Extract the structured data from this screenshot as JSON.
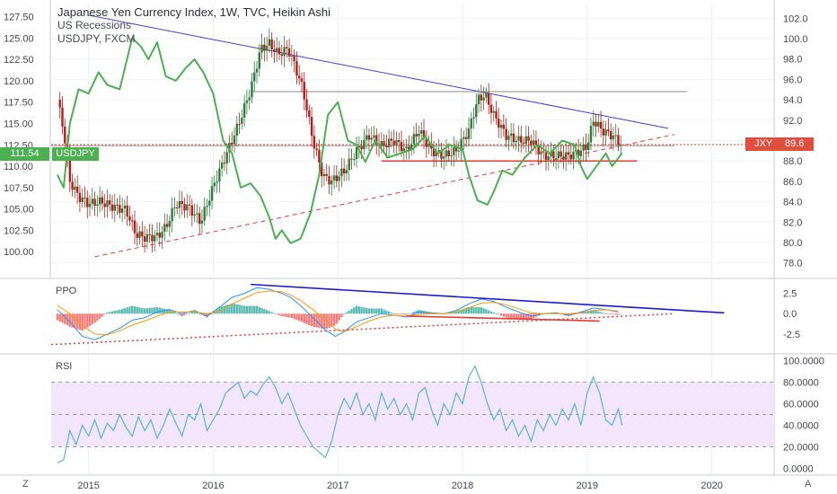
{
  "header": {
    "title": "Japanese Yen Currency Index, 1W, TVC, Heikin Ashi",
    "line2": "US Recessions",
    "line3": "USDJPY, FXCM"
  },
  "badges": {
    "usdjpy_value": "111.54",
    "usdjpy_name": "USDJPY",
    "jxy_name": "JXY",
    "jxy_value": "89.6",
    "usdjpy_color": "#4caf50",
    "jxy_color": "#e04e3e"
  },
  "buttons": {
    "zoom": "Z",
    "auto": "A"
  },
  "colors": {
    "up_candle": "#2f7d3a",
    "down_candle": "#b71c1c",
    "usdjpy_line": "#4caf50",
    "trend_blue": "#3f3fd0",
    "trend_red": "#e53935",
    "ppo_line": "#2196f3",
    "ppo_signal": "#ff9800",
    "rsi_line": "#56b4d3",
    "rsi_band": "#f3e5fb"
  },
  "chart_data": [
    {
      "type": "line",
      "name": "price-pane",
      "x_ticks": [
        "2015",
        "2016",
        "2017",
        "2018",
        "2019",
        "2020"
      ],
      "left_axis": {
        "ticks": [
          "127.50",
          "125.00",
          "122.50",
          "120.00",
          "117.50",
          "115.00",
          "112.50",
          "110.00",
          "107.50",
          "105.00",
          "102.50",
          "100.00"
        ],
        "ylim": [
          97.5,
          128.5
        ]
      },
      "right_axis": {
        "ticks": [
          "102.0",
          "100.0",
          "98.0",
          "96.0",
          "94.0",
          "92.0",
          "90.0",
          "88.0",
          "86.0",
          "84.0",
          "82.0",
          "80.0",
          "78.0"
        ],
        "ylim": [
          77.0,
          103.0
        ]
      },
      "series": [
        {
          "name": "Japanese Yen Currency Index",
          "style": "heikin-ashi candles",
          "axis": "right",
          "x": [
            2014.75,
            2014.8,
            2014.85,
            2014.92,
            2015.0,
            2015.1,
            2015.2,
            2015.3,
            2015.38,
            2015.45,
            2015.55,
            2015.62,
            2015.7,
            2015.8,
            2015.9,
            2016.0,
            2016.1,
            2016.2,
            2016.3,
            2016.38,
            2016.45,
            2016.52,
            2016.6,
            2016.65,
            2016.72,
            2016.8,
            2016.88,
            2016.95,
            2017.05,
            2017.15,
            2017.25,
            2017.35,
            2017.45,
            2017.55,
            2017.65,
            2017.75,
            2017.85,
            2017.95,
            2018.05,
            2018.12,
            2018.18,
            2018.25,
            2018.35,
            2018.45,
            2018.55,
            2018.65,
            2018.75,
            2018.85,
            2018.95,
            2019.0,
            2019.05,
            2019.12,
            2019.2,
            2019.28
          ],
          "values": [
            94.0,
            91.0,
            86.0,
            84.5,
            83.8,
            84.0,
            83.5,
            83.2,
            80.8,
            80.5,
            80.6,
            81.5,
            83.8,
            83.5,
            82.0,
            85.5,
            88.5,
            91.5,
            95.0,
            99.0,
            99.5,
            98.5,
            99.0,
            97.5,
            95.0,
            90.0,
            86.5,
            86.0,
            87.0,
            89.0,
            90.5,
            89.5,
            90.0,
            89.0,
            91.0,
            89.0,
            88.5,
            89.0,
            91.0,
            94.0,
            94.5,
            92.5,
            90.5,
            90.0,
            90.0,
            88.5,
            88.5,
            88.5,
            89.0,
            89.5,
            92.0,
            91.0,
            90.5,
            89.6
          ]
        },
        {
          "name": "USDJPY",
          "axis": "left",
          "x": [
            2014.75,
            2014.8,
            2014.85,
            2014.92,
            2015.0,
            2015.08,
            2015.15,
            2015.25,
            2015.35,
            2015.42,
            2015.48,
            2015.55,
            2015.62,
            2015.7,
            2015.78,
            2015.85,
            2015.92,
            2016.0,
            2016.08,
            2016.15,
            2016.22,
            2016.3,
            2016.38,
            2016.45,
            2016.5,
            2016.55,
            2016.62,
            2016.7,
            2016.78,
            2016.85,
            2016.92,
            2017.0,
            2017.08,
            2017.15,
            2017.22,
            2017.3,
            2017.4,
            2017.5,
            2017.6,
            2017.7,
            2017.8,
            2017.9,
            2018.0,
            2018.05,
            2018.12,
            2018.2,
            2018.25,
            2018.32,
            2018.4,
            2018.5,
            2018.6,
            2018.7,
            2018.8,
            2018.9,
            2018.95,
            2019.0,
            2019.05,
            2019.1,
            2019.15,
            2019.2,
            2019.28
          ],
          "values": [
            109.0,
            107.5,
            115.0,
            119.0,
            118.5,
            121.0,
            119.5,
            119.0,
            125.0,
            124.0,
            122.5,
            124.5,
            120.5,
            120.0,
            121.5,
            122.5,
            121.0,
            118.5,
            113.0,
            111.5,
            107.5,
            108.0,
            106.5,
            104.0,
            101.5,
            102.5,
            101.0,
            101.5,
            104.5,
            109.0,
            116.0,
            117.5,
            113.0,
            112.5,
            110.5,
            113.0,
            111.0,
            111.5,
            112.0,
            113.5,
            111.5,
            112.5,
            112.0,
            109.0,
            106.0,
            105.5,
            107.0,
            109.5,
            109.0,
            111.0,
            112.5,
            111.5,
            113.0,
            112.5,
            110.0,
            108.5,
            109.5,
            110.5,
            111.5,
            110.0,
            111.54
          ]
        }
      ],
      "annotations": [
        "descending trendline from 2015 to 2019",
        "rising dashed support line",
        "horizontal resistance near 94.5",
        "horizontal support near 88",
        "dotted current-price line at 89.6"
      ]
    },
    {
      "type": "line",
      "name": "PPO",
      "title": "PPO",
      "right_axis": {
        "ticks": [
          "2.5",
          "0.0",
          "-2.5"
        ],
        "ylim": [
          -4.5,
          4.0
        ]
      },
      "x": [
        2014.75,
        2014.85,
        2014.95,
        2015.05,
        2015.15,
        2015.25,
        2015.35,
        2015.45,
        2015.55,
        2015.65,
        2015.75,
        2015.85,
        2015.95,
        2016.05,
        2016.15,
        2016.25,
        2016.35,
        2016.45,
        2016.55,
        2016.62,
        2016.7,
        2016.8,
        2016.9,
        2016.98,
        2017.05,
        2017.15,
        2017.25,
        2017.35,
        2017.45,
        2017.55,
        2017.65,
        2017.75,
        2017.85,
        2017.95,
        2018.05,
        2018.15,
        2018.25,
        2018.35,
        2018.45,
        2018.55,
        2018.65,
        2018.75,
        2018.85,
        2018.95,
        2019.05,
        2019.15,
        2019.25
      ],
      "series": [
        {
          "name": "PPO",
          "values": [
            0.5,
            -1.0,
            -2.8,
            -3.2,
            -2.5,
            -1.8,
            -0.8,
            -0.5,
            0.2,
            0.5,
            0.0,
            0.4,
            -0.3,
            0.8,
            2.0,
            2.5,
            3.2,
            3.0,
            2.5,
            2.0,
            1.0,
            -0.5,
            -2.0,
            -2.8,
            -2.2,
            -1.0,
            -0.5,
            0.0,
            -0.2,
            -0.4,
            0.2,
            0.1,
            0.0,
            0.4,
            1.2,
            1.8,
            1.5,
            0.8,
            0.2,
            -0.3,
            0.0,
            0.1,
            -0.2,
            0.2,
            0.7,
            0.5,
            0.2
          ]
        },
        {
          "name": "Signal",
          "values": [
            1.0,
            0.0,
            -1.5,
            -2.5,
            -2.6,
            -2.1,
            -1.4,
            -0.9,
            -0.3,
            0.2,
            0.2,
            0.2,
            0.0,
            0.3,
            1.2,
            1.9,
            2.6,
            2.8,
            2.7,
            2.3,
            1.6,
            0.5,
            -0.8,
            -1.9,
            -2.2,
            -1.6,
            -0.9,
            -0.4,
            -0.2,
            -0.3,
            -0.1,
            0.0,
            0.0,
            0.2,
            0.7,
            1.3,
            1.4,
            1.1,
            0.6,
            0.1,
            0.0,
            0.0,
            0.0,
            0.1,
            0.4,
            0.5,
            0.3
          ]
        }
      ]
    },
    {
      "type": "line",
      "name": "RSI",
      "title": "RSI",
      "right_axis": {
        "ticks": [
          "100.0000",
          "80.0000",
          "60.0000",
          "40.0000",
          "20.0000",
          "0.0000"
        ],
        "ylim": [
          -3,
          103
        ]
      },
      "band": [
        20,
        80
      ],
      "x": [
        2014.75,
        2014.8,
        2014.85,
        2014.9,
        2014.95,
        2015.0,
        2015.05,
        2015.1,
        2015.15,
        2015.2,
        2015.25,
        2015.3,
        2015.35,
        2015.4,
        2015.45,
        2015.5,
        2015.55,
        2015.6,
        2015.65,
        2015.7,
        2015.75,
        2015.8,
        2015.85,
        2015.9,
        2015.95,
        2016.0,
        2016.05,
        2016.1,
        2016.15,
        2016.2,
        2016.25,
        2016.3,
        2016.35,
        2016.4,
        2016.45,
        2016.5,
        2016.55,
        2016.6,
        2016.65,
        2016.7,
        2016.75,
        2016.8,
        2016.85,
        2016.9,
        2016.95,
        2017.0,
        2017.05,
        2017.1,
        2017.15,
        2017.2,
        2017.25,
        2017.3,
        2017.35,
        2017.4,
        2017.45,
        2017.5,
        2017.55,
        2017.6,
        2017.65,
        2017.7,
        2017.75,
        2017.8,
        2017.85,
        2017.9,
        2017.95,
        2018.0,
        2018.05,
        2018.1,
        2018.15,
        2018.2,
        2018.25,
        2018.3,
        2018.35,
        2018.4,
        2018.45,
        2018.5,
        2018.55,
        2018.6,
        2018.65,
        2018.7,
        2018.75,
        2018.8,
        2018.85,
        2018.9,
        2018.95,
        2019.0,
        2019.05,
        2019.1,
        2019.15,
        2019.2,
        2019.25,
        2019.28
      ],
      "values": [
        5,
        8,
        35,
        22,
        40,
        30,
        45,
        28,
        42,
        35,
        50,
        38,
        30,
        48,
        35,
        45,
        28,
        40,
        55,
        42,
        30,
        50,
        45,
        60,
        35,
        45,
        55,
        70,
        75,
        80,
        65,
        72,
        68,
        78,
        85,
        75,
        60,
        70,
        55,
        40,
        30,
        20,
        15,
        10,
        25,
        50,
        65,
        55,
        70,
        50,
        60,
        45,
        70,
        55,
        65,
        50,
        60,
        45,
        70,
        75,
        55,
        40,
        60,
        50,
        70,
        60,
        85,
        95,
        80,
        60,
        45,
        55,
        35,
        45,
        30,
        40,
        25,
        45,
        35,
        50,
        40,
        55,
        45,
        60,
        40,
        70,
        85,
        70,
        45,
        40,
        55,
        40
      ]
    }
  ]
}
